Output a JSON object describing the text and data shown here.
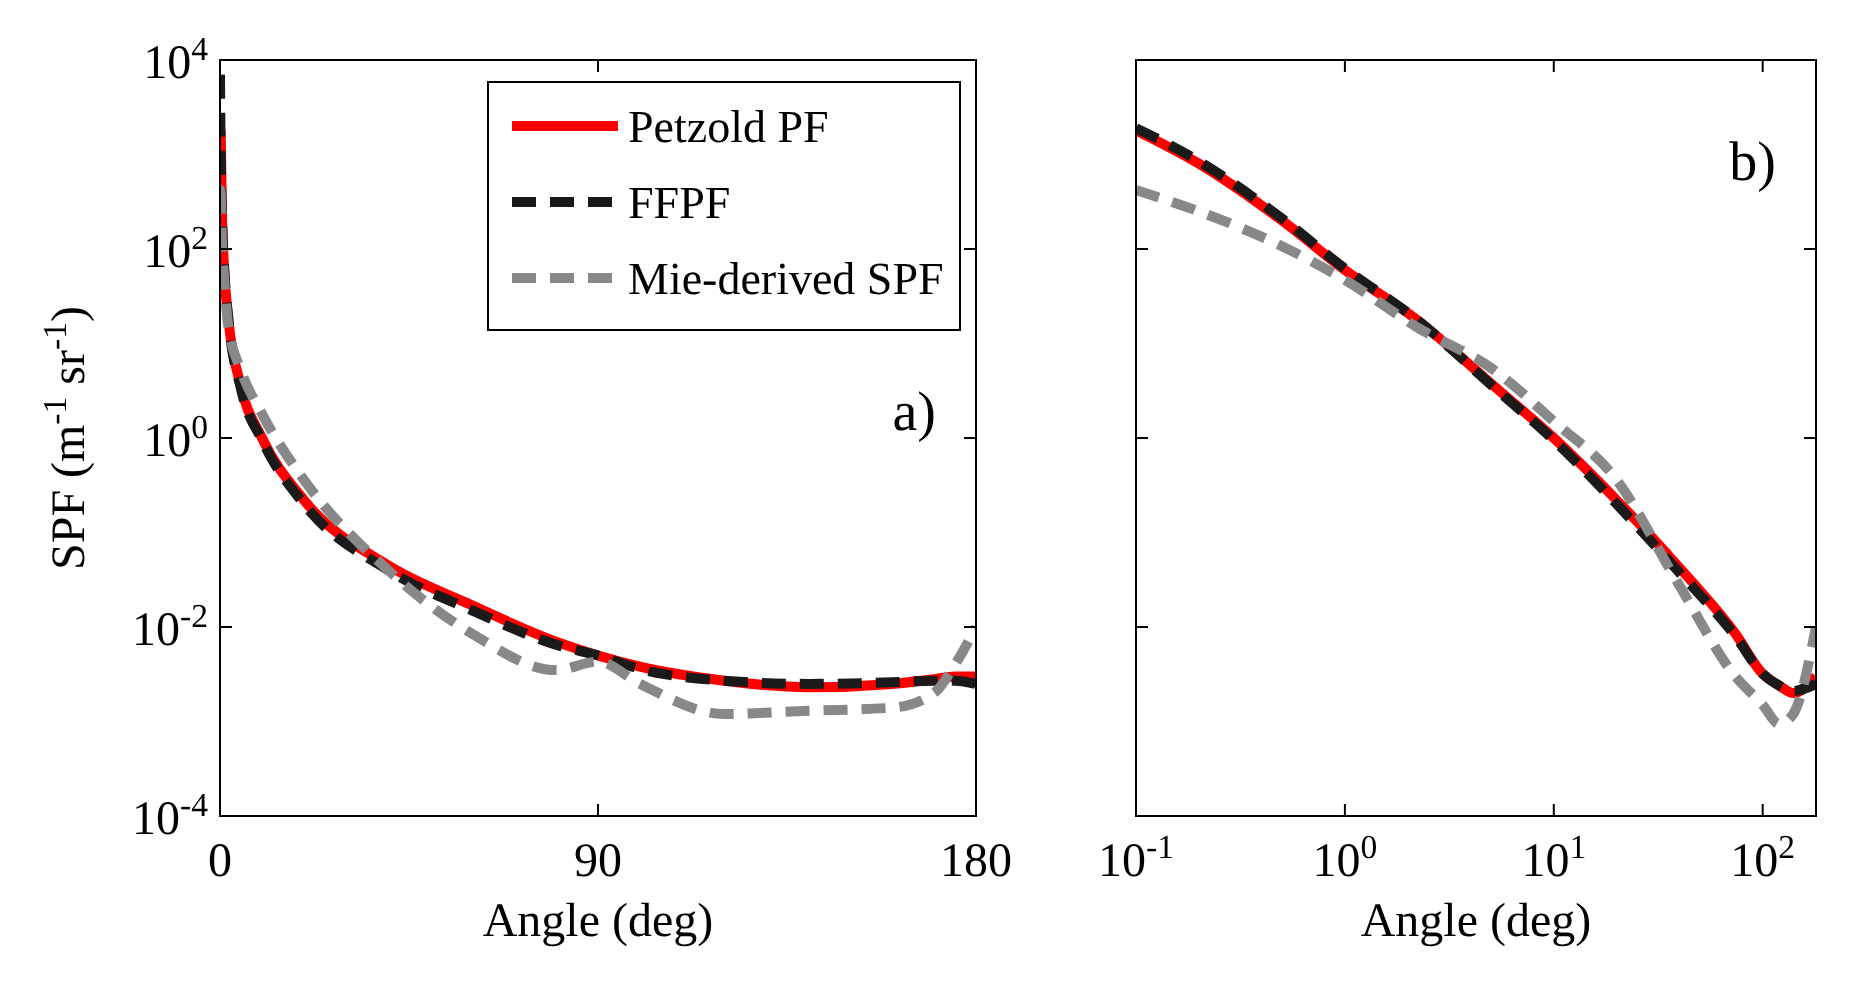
{
  "chart_data": [
    {
      "type": "line",
      "xlabel": "Angle (deg)",
      "ylabel": "SPF (m$^{-1}$ sr$^{-1}$)",
      "log": "y",
      "legend": "top right",
      "annotations": [
        "a)"
      ],
      "xlim": [
        0,
        180
      ],
      "xticks": [
        0,
        90,
        180
      ],
      "ylim": [
        0.0001,
        10000
      ],
      "yticks": [
        {
          "value": 10000,
          "label": "10$^{4}$"
        },
        {
          "value": 100,
          "label": "10$^{2}$"
        },
        {
          "value": 1,
          "label": "10$^{0}$"
        },
        {
          "value": 0.01,
          "label": "10$^{-2}$"
        },
        {
          "value": 0.0001,
          "label": "10$^{-4}$"
        }
      ],
      "x": [
        0,
        0.1,
        0.5,
        1,
        2,
        5,
        10,
        20,
        40,
        60,
        80,
        90,
        100,
        120,
        140,
        160,
        170,
        175,
        180
      ],
      "series": [
        {
          "name": "Petzold PF",
          "color": "#ff0000",
          "line_style": "solid",
          "values": [
            1800,
            1800,
            200,
            60,
            18,
            3.5,
            1,
            0.22,
            0.045,
            0.017,
            0.007,
            0.005,
            0.0038,
            0.0027,
            0.0023,
            0.0025,
            0.0028,
            0.003,
            0.003
          ]
        },
        {
          "name": "FFPF",
          "color": "#1a1a1a",
          "line_style": "dashed",
          "values": [
            7000,
            1900,
            210,
            62,
            18,
            3.3,
            0.95,
            0.2,
            0.04,
            0.015,
            0.0065,
            0.005,
            0.0036,
            0.0027,
            0.0025,
            0.0026,
            0.0027,
            0.0027,
            0.0025
          ]
        },
        {
          "name": "Mie-derived SPF",
          "color": "#888888",
          "line_style": "dashed",
          "values": [
            420,
            420,
            107,
            47,
            15,
            5.2,
            1.8,
            0.36,
            0.04,
            0.0085,
            0.0035,
            0.0043,
            0.0025,
            0.0012,
            0.0013,
            0.0014,
            0.002,
            0.004,
            0.01
          ]
        }
      ]
    },
    {
      "type": "line",
      "xlabel": "Angle (deg)",
      "log": "xy",
      "legend": false,
      "tick_labels": "x",
      "annotations": [
        "b)"
      ],
      "xlim": [
        0.1,
        180
      ],
      "xticks": [
        {
          "value": 0.1,
          "label": "10$^{-1}$"
        },
        {
          "value": 1,
          "label": "10$^{0}$"
        },
        {
          "value": 10,
          "label": "10$^{1}$"
        },
        {
          "value": 100,
          "label": "10$^{2}$"
        }
      ],
      "ylim": [
        0.0001,
        10000
      ],
      "yticks": [
        {
          "value": 10000,
          "label": null
        },
        {
          "value": 100,
          "label": null
        },
        {
          "value": 1,
          "label": null
        },
        {
          "value": 0.01,
          "label": null
        },
        {
          "value": 0.0001,
          "label": null
        }
      ],
      "x": [
        0.1,
        0.2,
        0.5,
        1,
        2.2,
        5.2,
        10,
        20,
        39,
        74,
        100,
        120,
        140,
        180
      ],
      "series": [
        {
          "color": "#ff0000",
          "line_style": "solid",
          "values": [
            1800,
            800,
            200,
            60,
            18,
            3.5,
            1,
            0.22,
            0.045,
            0.0085,
            0.0032,
            0.0024,
            0.002,
            0.003
          ]
        },
        {
          "color": "#1a1a1a",
          "line_style": "dashed",
          "values": [
            1900,
            850,
            210,
            62,
            18,
            3.4,
            0.95,
            0.2,
            0.04,
            0.008,
            0.0032,
            0.0024,
            0.0021,
            0.0025
          ]
        },
        {
          "color": "#888888",
          "line_style": "dashed",
          "values": [
            420,
            250,
            107,
            47,
            15,
            5.2,
            1.5,
            0.36,
            0.03,
            0.003,
            0.0015,
            0.00094,
            0.0012,
            0.01
          ]
        }
      ]
    }
  ]
}
